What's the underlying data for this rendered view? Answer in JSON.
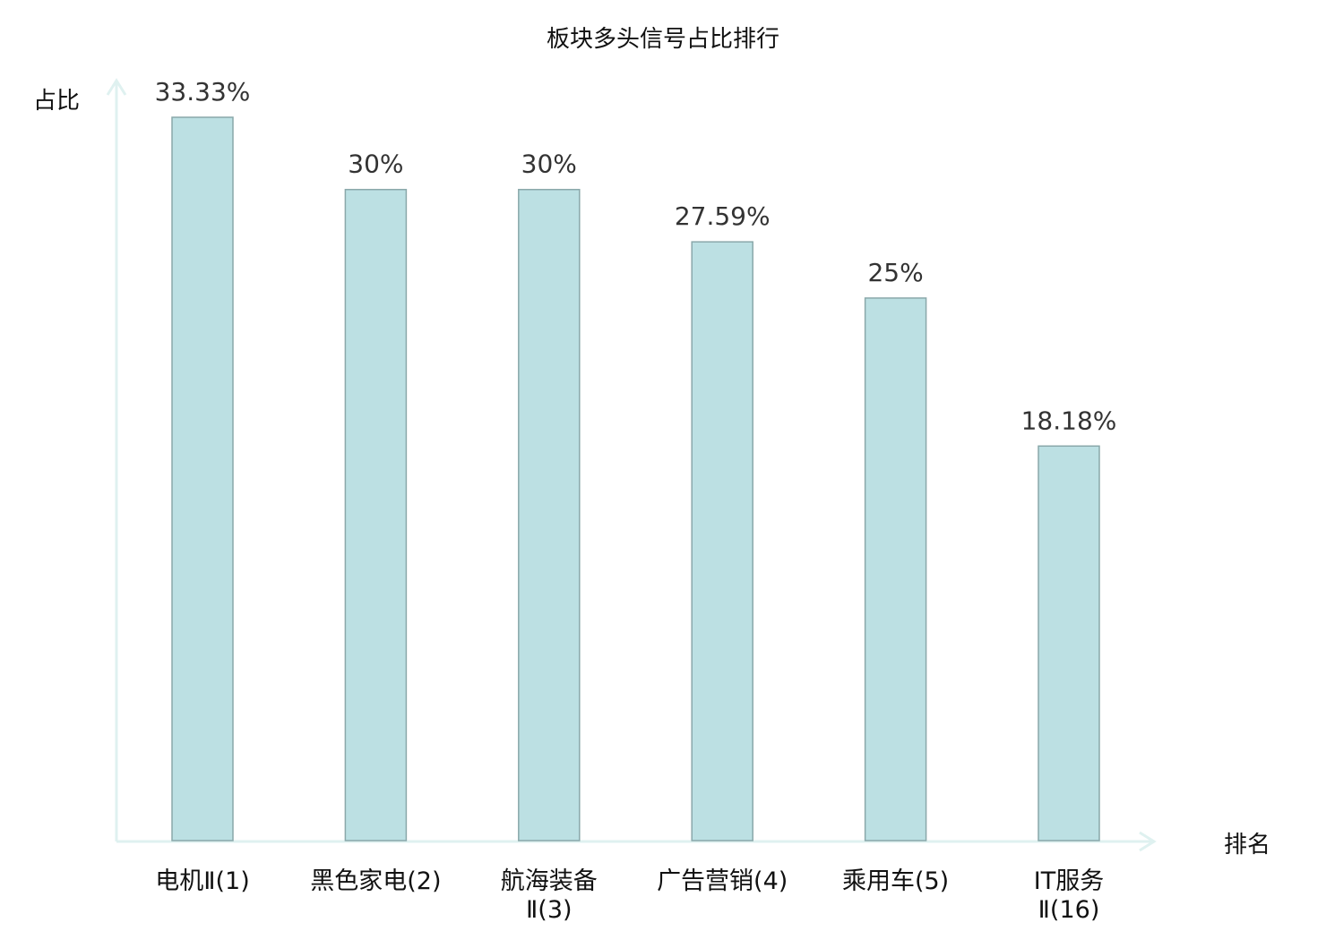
{
  "chart_data": {
    "type": "bar",
    "title": "板块多头信号占比排行",
    "xlabel": "排名",
    "ylabel": "占比",
    "categories": [
      [
        "电机Ⅱ(1)"
      ],
      [
        "黑色家电(2)"
      ],
      [
        "航海装备",
        "Ⅱ(3)"
      ],
      [
        "广告营销(4)"
      ],
      [
        "乘用车(5)"
      ],
      [
        "IT服务",
        "Ⅱ(16)"
      ]
    ],
    "values": [
      33.33,
      30,
      30,
      27.59,
      25,
      18.18
    ],
    "data_labels": [
      "33.33%",
      "30%",
      "30%",
      "27.59%",
      "25%",
      "18.18%"
    ],
    "highlight_index": 5,
    "ylim": [
      0,
      33.33
    ],
    "grid": false,
    "colors": {
      "bar_fill": "#bce0e3",
      "bar_stroke": "#8aa8aa",
      "axis": "#dff1f0",
      "label": "#111111",
      "highlight": "#e8231f",
      "data_label": "#333333"
    }
  }
}
